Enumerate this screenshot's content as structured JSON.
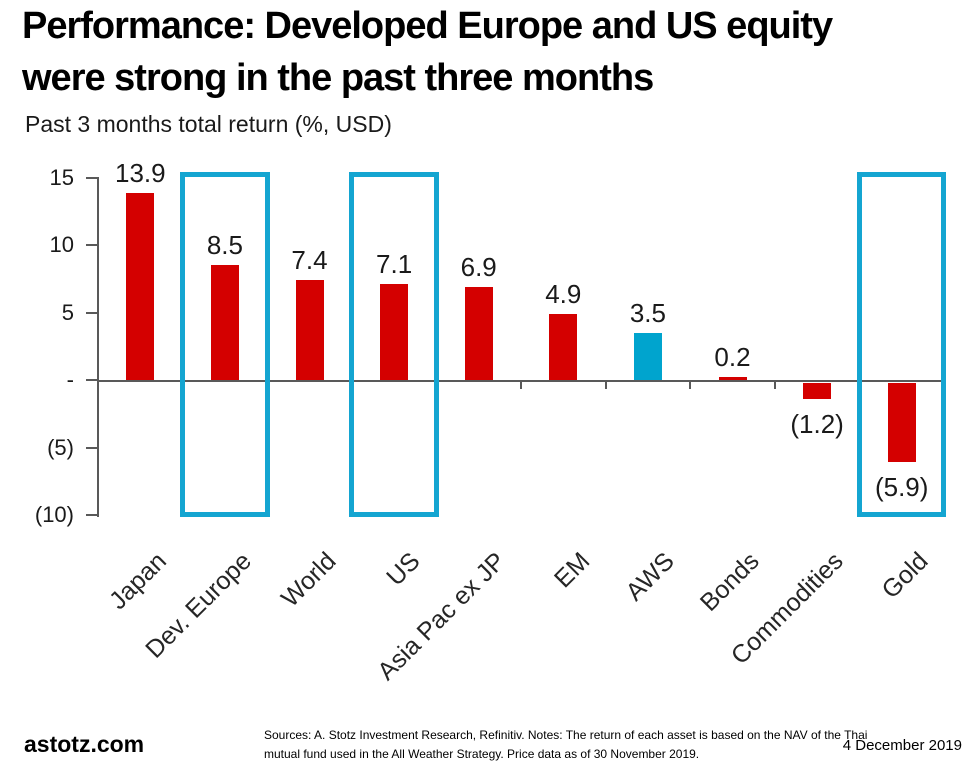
{
  "title": {
    "line1": "Performance: Developed Europe and US equity",
    "line2": "were strong in the past three months"
  },
  "chart_data": {
    "type": "bar",
    "title": "Past 3 months total return (%, USD)",
    "categories": [
      "Japan",
      "Dev. Europe",
      "World",
      "US",
      "Asia Pac ex JP",
      "EM",
      "AWS",
      "Bonds",
      "Commodities",
      "Gold"
    ],
    "values": [
      13.9,
      8.5,
      7.4,
      7.1,
      6.9,
      4.9,
      3.5,
      0.2,
      -1.2,
      -5.9
    ],
    "value_labels": [
      "13.9",
      "8.5",
      "7.4",
      "7.1",
      "6.9",
      "4.9",
      "3.5",
      "0.2",
      "(1.2)",
      "(5.9)"
    ],
    "colors": [
      "#D40000",
      "#D40000",
      "#D40000",
      "#D40000",
      "#D40000",
      "#D40000",
      "#00A4CE",
      "#D40000",
      "#D40000",
      "#D40000"
    ],
    "highlighted_categories": [
      "Dev. Europe",
      "US",
      "Gold"
    ],
    "highlight_box_color": "#14A5D1",
    "axis_color": "#595959",
    "ylim": [
      -10,
      15
    ],
    "yticks": [
      {
        "value": 15,
        "label": "15"
      },
      {
        "value": 10,
        "label": "10"
      },
      {
        "value": 5,
        "label": "5"
      },
      {
        "value": 0,
        "label": "-"
      },
      {
        "value": -5,
        "label": "(5)"
      },
      {
        "value": -10,
        "label": "(10)"
      }
    ],
    "grid": false,
    "legend": false
  },
  "footer": {
    "brand": "astotz.com",
    "sources": "Sources: A. Stotz Investment Research, Refinitiv. Notes: The return of each asset is based on the NAV of the Thai mutual fund used in the All Weather Strategy. Price data as of 30 November 2019.",
    "date": "4 December 2019"
  }
}
